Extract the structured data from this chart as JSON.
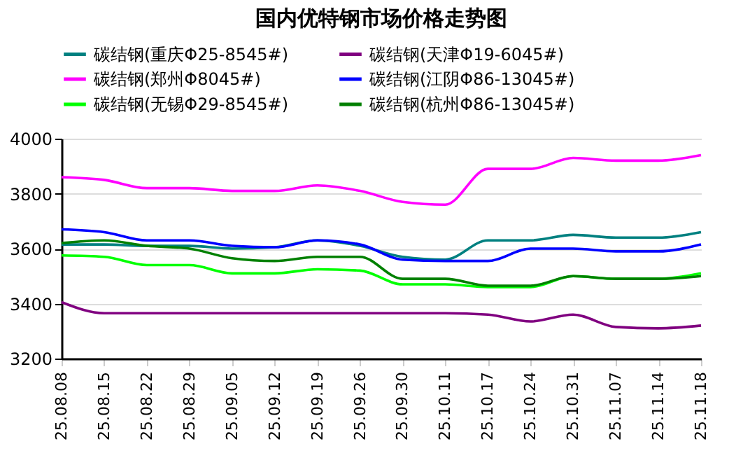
{
  "chart_data": {
    "type": "line",
    "title": "国内优特钢市场价格走势图",
    "categories": [
      "25.08.08",
      "25.08.15",
      "25.08.22",
      "25.08.29",
      "25.09.05",
      "25.09.12",
      "25.09.19",
      "25.09.26",
      "25.09.30",
      "25.10.11",
      "25.10.17",
      "25.10.24",
      "25.10.31",
      "25.11.07",
      "25.11.14",
      "25.11.18"
    ],
    "series": [
      {
        "name": "碳结钢(重庆Φ25-8545#)",
        "color": "#008080",
        "values": [
          3615,
          3615,
          3610,
          3610,
          3600,
          3605,
          3630,
          3610,
          3570,
          3560,
          3630,
          3630,
          3650,
          3640,
          3640,
          3660
        ]
      },
      {
        "name": "碳结钢(天津Φ19-6045#)",
        "color": "#800080",
        "values": [
          3405,
          3365,
          3365,
          3365,
          3365,
          3365,
          3365,
          3365,
          3365,
          3365,
          3360,
          3335,
          3360,
          3315,
          3310,
          3320
        ]
      },
      {
        "name": "碳结钢(郑州Φ8045#)",
        "color": "#ff00ff",
        "values": [
          3860,
          3850,
          3820,
          3820,
          3810,
          3810,
          3830,
          3810,
          3770,
          3760,
          3890,
          3890,
          3930,
          3920,
          3920,
          3940
        ]
      },
      {
        "name": "碳结钢(江阴Φ86-13045#)",
        "color": "#0000ff",
        "values": [
          3670,
          3660,
          3630,
          3630,
          3610,
          3605,
          3630,
          3615,
          3560,
          3555,
          3555,
          3600,
          3600,
          3590,
          3590,
          3615
        ]
      },
      {
        "name": "碳结钢(无锡Φ29-8545#)",
        "color": "#00ff00",
        "values": [
          3575,
          3570,
          3540,
          3540,
          3510,
          3510,
          3525,
          3520,
          3470,
          3470,
          3460,
          3460,
          3500,
          3490,
          3490,
          3510
        ]
      },
      {
        "name": "碳结钢(杭州Φ86-13045#)",
        "color": "#008000",
        "values": [
          3620,
          3630,
          3610,
          3600,
          3565,
          3555,
          3570,
          3570,
          3490,
          3490,
          3465,
          3465,
          3500,
          3490,
          3490,
          3500
        ]
      }
    ],
    "ylim": [
      3200,
      4000
    ],
    "yticks": [
      3200,
      3400,
      3600,
      3800,
      4000
    ],
    "grid": "y",
    "legend": "top",
    "marker": "none",
    "line_style": "solid"
  }
}
